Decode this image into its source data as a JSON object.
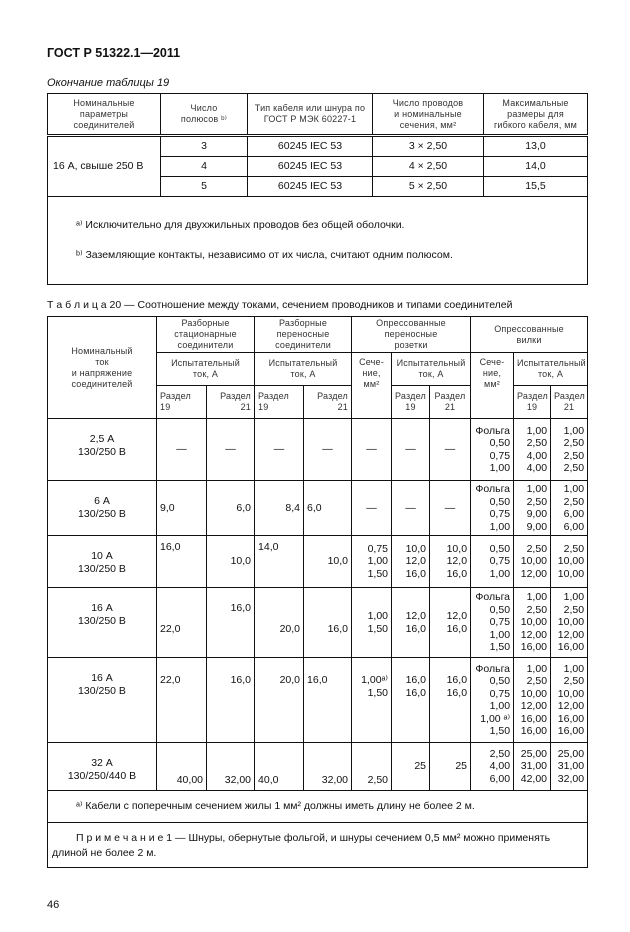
{
  "header": {
    "doc_id": "ГОСТ Р 51322.1—2011"
  },
  "table19": {
    "caption": "Окончание таблицы 19",
    "columns": [
      "Номинальные\nпараметры\nсоединителей",
      "Число\nполюсов ᵇ⁾",
      "Тип кабеля или шнура по\nГОСТ Р МЭК 60227-1",
      "Число проводов\nи номинальные\nсечения, мм²",
      "Максимальные\nразмеры для\nгибкого кабеля, мм"
    ],
    "group_label": "16 А, свыше 250 В",
    "rows": [
      {
        "poles": "3",
        "type": "60245 IEC  53",
        "section": "3 × 2,50",
        "size": "13,0"
      },
      {
        "poles": "4",
        "type": "60245 IEC  53",
        "section": "4 × 2,50",
        "size": "14,0"
      },
      {
        "poles": "5",
        "type": "60245 IEC  53",
        "section": "5 × 2,50",
        "size": "15,5"
      }
    ],
    "footnotes": [
      "ᵃ⁾ Исключительно для двухжильных проводов без общей оболочки.",
      "ᵇ⁾ Заземляющие контакты, независимо от их числа, считают одним полюсом."
    ]
  },
  "table20": {
    "caption": "Т а б л и ц а 20 — Соотношение между токами, сечением проводников и типами соединителей",
    "head": {
      "nominal": "Номинальный\nток\nи напряжение\nсоединителей",
      "g1": "Разборные\nстационарные\nсоединители",
      "g2": "Разборные\nпереносные\nсоединители",
      "g3": "Опрессованные\nпереносные\nрозетки",
      "g4": "Опрессованные\nвилки",
      "test_current": "Испытательный\nток, А",
      "section": "Сече-\nние,\nмм²",
      "r19": "Раздел\n19",
      "r21": "Раздел\n21"
    },
    "rows": [
      {
        "name": "2,5 А\n130/250 В",
        "c": [
          "—",
          "—",
          "—",
          "—",
          "—",
          "—",
          "—",
          "Фольга\n0,50\n0,75\n1,00",
          "1,00\n2,50\n4,00\n4,00",
          "1,00\n2,50\n2,50\n2,50"
        ]
      },
      {
        "name": "6 А\n130/250 В",
        "c": [
          "9,0",
          "6,0",
          "8,4",
          "6,0",
          "—",
          "—",
          "—",
          "Фольга\n0,50\n0,75\n1,00",
          "1,00\n2,50\n9,00\n9,00",
          "1,00\n2,50\n6,00\n6,00"
        ]
      },
      {
        "name": "10 А\n130/250 В",
        "c": [
          "16,0",
          "10,0",
          "14,0",
          "10,0",
          "0,75\n1,00\n1,50",
          "10,0\n12,0\n16,0",
          "10,0\n12,0\n16,0",
          "0,50\n0,75\n1,00",
          "2,50\n10,00\n12,00",
          "2,50\n10,00\n10,00"
        ]
      },
      {
        "name": "16 А\n130/250 В",
        "c": [
          "22,0",
          "16,0",
          "20,0",
          "16,0",
          "1,00\n1,50",
          "12,0\n16,0",
          "12,0\n16,0",
          "Фольга\n0,50\n0,75\n1,00\n1,50",
          "1,00\n2,50\n10,00\n12,00\n16,00",
          "1,00\n2,50\n10,00\n12,00\n16,00"
        ]
      },
      {
        "name": "16 А\n130/250 В",
        "c": [
          "22,0",
          "16,0",
          "20,0",
          "16,0",
          "1,00ᵃ⁾\n1,50",
          "16,0\n16,0",
          "16,0\n16,0",
          "Фольга\n0,50\n0,75\n1,00\n1,00 ᵃ⁾\n1,50",
          "1,00\n2,50\n10,00\n12,00\n16,00\n16,00",
          "1,00\n2,50\n10,00\n12,00\n16,00\n16,00"
        ]
      },
      {
        "name": "32 А\n130/250/440 В",
        "c": [
          "40,00",
          "32,00",
          "40,0",
          "32,00",
          "2,50",
          "25",
          "25",
          "2,50\n4,00\n6,00",
          "25,00\n31,00\n42,00",
          "25,00\n31,00\n32,00"
        ]
      }
    ],
    "footnote": "ᵃ⁾ Кабели с поперечным сечением жилы 1 мм²  должны иметь длину не более 2 м.",
    "note": "П р и м е ч а н и е 1 — Шнуры, обернутые фольгой, и шнуры сечением 0,5 мм² можно применять длиной не более 2 м."
  },
  "footer": {
    "page_number": "46"
  }
}
